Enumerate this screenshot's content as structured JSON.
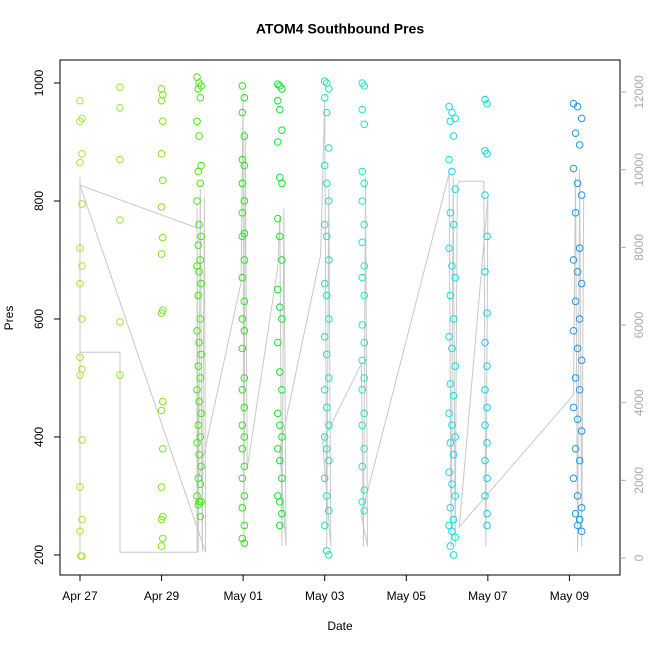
{
  "chart_data": {
    "type": "scatter",
    "title": "ATOM4 Southbound Pres",
    "x_label": "Date",
    "y_label": "Pres",
    "xlim": [
      -0.49,
      13.24
    ],
    "ylim": [
      166,
      1039
    ],
    "y2lim": [
      -438,
      12824
    ],
    "xticks": [
      {
        "value": 0,
        "label": "Apr 27"
      },
      {
        "value": 2,
        "label": "Apr 29"
      },
      {
        "value": 4,
        "label": "May 01"
      },
      {
        "value": 6,
        "label": "May 03"
      },
      {
        "value": 8,
        "label": "May 05"
      },
      {
        "value": 10,
        "label": "May 07"
      },
      {
        "value": 12,
        "label": "May 09"
      }
    ],
    "yticks": [
      200,
      400,
      600,
      800,
      1000
    ],
    "y2ticks": [
      0,
      2000,
      4000,
      6000,
      8000,
      10000,
      12000
    ],
    "series": [
      {
        "axis": "y2",
        "color": "#c8c8c8",
        "x": [
          0,
          0,
          0,
          0.98,
          0.98,
          2.87,
          2.87,
          2.9,
          2.95,
          3.0,
          3.05,
          3.08,
          0,
          2.87,
          2.9,
          3.95,
          4.0,
          4.02,
          4.05,
          4.1,
          4.85,
          4.9,
          4.95,
          5.0,
          5.05,
          4.9,
          5.9,
          6.0,
          6.05,
          6.1,
          6.15,
          5.95,
          6.9,
          6.95,
          7.0,
          7.05,
          6.9,
          9.05,
          9.1,
          9.15,
          9.2,
          9.25,
          9.3,
          9.9,
          9.95,
          10.0,
          9.3,
          12.1,
          12.15,
          12.2,
          12.25,
          12.3,
          12.35
        ],
        "values": [
          150,
          9800,
          5300,
          5300,
          150,
          150,
          9000,
          150,
          9500,
          150,
          9300,
          150,
          9600,
          8500,
          2000,
          7100,
          12000,
          300,
          11000,
          2300,
          7500,
          8800,
          300,
          9000,
          300,
          2800,
          7800,
          11800,
          300,
          9500,
          300,
          3000,
          5000,
          300,
          9800,
          300,
          1100,
          9900,
          300,
          9800,
          300,
          9600,
          9700,
          9700,
          300,
          9300,
          800,
          4200,
          9800,
          150,
          10000,
          300,
          9300
        ]
      },
      {
        "color": "#a8e632",
        "x": [
          0,
          0.05,
          0,
          0.05,
          0,
          0.05,
          0,
          0.05,
          0,
          0.05,
          0,
          0.05,
          0,
          0.05,
          0,
          0.05,
          0,
          0.05,
          0.02
        ],
        "values": [
          970,
          940,
          935,
          880,
          865,
          795,
          720,
          690,
          660,
          600,
          535,
          515,
          505,
          395,
          315,
          260,
          240,
          198,
          198
        ]
      },
      {
        "color": "#98e62b",
        "x": [
          0.98,
          0.98,
          0.98,
          0.98,
          0.98,
          0.98
        ],
        "values": [
          993,
          958,
          870,
          768,
          595,
          505
        ]
      },
      {
        "color": "#7ae621",
        "x": [
          2.0,
          2.03,
          2.0,
          2.03,
          2.0,
          2.03,
          2.0,
          2.03,
          2.0,
          2.03,
          2.0,
          2.03,
          2.0,
          2.03,
          2.0,
          2.03,
          2.0,
          2.03,
          2.0
        ],
        "values": [
          990,
          980,
          970,
          935,
          880,
          835,
          790,
          738,
          710,
          615,
          610,
          460,
          445,
          380,
          315,
          265,
          260,
          228,
          215
        ]
      },
      {
        "color": "#47e612",
        "x": [
          2.87,
          2.92,
          2.97,
          2.9,
          2.95,
          2.87,
          2.92,
          2.97,
          2.9,
          2.95,
          2.87,
          2.92,
          2.97,
          2.9,
          2.95,
          2.87,
          2.92,
          2.97,
          2.9,
          2.95,
          2.87,
          2.92,
          2.97,
          2.9,
          2.95,
          2.87,
          2.92,
          2.97,
          2.9,
          2.95,
          2.87,
          2.92,
          2.97,
          2.9,
          2.95,
          2.87,
          2.92,
          2.97,
          2.9,
          2.95
        ],
        "values": [
          1010,
          1000,
          995,
          990,
          975,
          935,
          910,
          860,
          850,
          830,
          800,
          760,
          740,
          725,
          700,
          690,
          680,
          660,
          640,
          600,
          580,
          560,
          540,
          520,
          500,
          480,
          460,
          440,
          420,
          400,
          390,
          370,
          350,
          330,
          320,
          300,
          290,
          290,
          285,
          265
        ]
      },
      {
        "color": "#2ee617",
        "x": [
          3.98,
          4.03,
          3.98,
          4.03,
          3.98,
          4.03,
          3.98,
          4.03,
          3.98,
          4.03,
          3.98,
          4.03,
          3.98,
          4.03,
          3.98,
          4.03,
          3.98,
          4.03,
          3.98,
          4.03,
          3.98,
          4.03,
          3.98,
          4.03,
          3.98,
          4.03,
          3.98,
          4.03,
          3.98,
          4.03
        ],
        "values": [
          995,
          975,
          950,
          910,
          870,
          860,
          830,
          800,
          780,
          745,
          740,
          700,
          670,
          630,
          600,
          580,
          550,
          500,
          480,
          450,
          420,
          400,
          380,
          350,
          330,
          300,
          280,
          250,
          228,
          220
        ]
      },
      {
        "color": "#14e62a",
        "x": [
          4.85,
          4.9,
          4.95,
          4.85,
          4.9,
          4.95,
          4.85,
          4.9,
          4.95,
          4.85,
          4.9,
          4.95,
          4.85,
          4.9,
          4.95,
          4.85,
          4.9,
          4.95,
          4.85,
          4.9,
          4.95,
          4.85,
          4.9,
          4.95,
          4.85,
          4.9,
          4.95,
          4.9
        ],
        "values": [
          998,
          995,
          990,
          970,
          955,
          920,
          900,
          840,
          830,
          770,
          740,
          700,
          650,
          620,
          600,
          560,
          510,
          480,
          440,
          420,
          400,
          380,
          360,
          330,
          300,
          290,
          270,
          250
        ]
      },
      {
        "color": "#1ee6a8",
        "x": [
          6.0,
          6.05,
          6.1,
          6.0,
          6.05,
          6.1,
          6.0,
          6.05,
          6.1,
          6.0,
          6.05,
          6.1,
          6.0,
          6.05,
          6.1,
          6.0,
          6.05,
          6.1,
          6.0,
          6.05,
          6.1,
          6.0,
          6.05,
          6.1,
          6.0,
          6.05,
          6.1,
          6.0,
          6.05,
          6.1
        ],
        "values": [
          1003,
          1000,
          990,
          975,
          950,
          890,
          860,
          830,
          800,
          760,
          740,
          700,
          660,
          640,
          600,
          570,
          540,
          500,
          480,
          450,
          420,
          400,
          380,
          360,
          330,
          300,
          275,
          250,
          207,
          200
        ]
      },
      {
        "color": "#24e6c2",
        "x": [
          6.92,
          6.97,
          6.92,
          6.97,
          6.92,
          6.97,
          6.92,
          6.97,
          6.92,
          6.97,
          6.92,
          6.97,
          6.92,
          6.97,
          6.92,
          6.97,
          6.92,
          6.97,
          6.92,
          6.97,
          6.92,
          6.97,
          6.92,
          6.97
        ],
        "values": [
          1000,
          995,
          955,
          930,
          850,
          830,
          800,
          760,
          730,
          690,
          670,
          640,
          590,
          560,
          530,
          500,
          480,
          440,
          420,
          380,
          350,
          310,
          290,
          275
        ]
      },
      {
        "color": "#14dce6",
        "x": [
          9.05,
          9.12,
          9.2,
          9.08,
          9.16,
          9.05,
          9.12,
          9.2,
          9.08,
          9.16,
          9.05,
          9.12,
          9.2,
          9.08,
          9.16,
          9.05,
          9.12,
          9.2,
          9.08,
          9.16,
          9.05,
          9.12,
          9.2,
          9.08,
          9.16,
          9.05,
          9.12,
          9.2,
          9.08,
          9.16,
          9.05,
          9.12,
          9.2,
          9.08,
          9.16
        ],
        "values": [
          960,
          950,
          940,
          935,
          910,
          870,
          850,
          820,
          780,
          760,
          720,
          690,
          670,
          640,
          600,
          570,
          550,
          520,
          490,
          470,
          440,
          420,
          400,
          390,
          370,
          340,
          320,
          300,
          280,
          260,
          250,
          240,
          230,
          215,
          200
        ]
      },
      {
        "color": "#17cfe6",
        "x": [
          9.93,
          9.98,
          9.93,
          9.98,
          9.93,
          9.98,
          9.93,
          9.98,
          9.93,
          9.98,
          9.93,
          9.98,
          9.93,
          9.98,
          9.93,
          9.98,
          9.93,
          9.98,
          9.98
        ],
        "values": [
          972,
          965,
          885,
          880,
          810,
          740,
          680,
          610,
          560,
          520,
          480,
          450,
          420,
          390,
          360,
          330,
          300,
          270,
          250
        ]
      },
      {
        "color": "#2196e6",
        "x": [
          12.1,
          12.2,
          12.3,
          12.15,
          12.25,
          12.1,
          12.2,
          12.3,
          12.15,
          12.25,
          12.1,
          12.2,
          12.3,
          12.15,
          12.25,
          12.1,
          12.2,
          12.3,
          12.15,
          12.25,
          12.1,
          12.2,
          12.3,
          12.15,
          12.25,
          12.1,
          12.2,
          12.3,
          12.15,
          12.25,
          12.2,
          12.3
        ],
        "values": [
          965,
          960,
          940,
          915,
          895,
          855,
          830,
          810,
          780,
          720,
          700,
          680,
          660,
          630,
          600,
          580,
          550,
          530,
          500,
          480,
          450,
          430,
          410,
          380,
          360,
          330,
          300,
          280,
          270,
          260,
          250,
          240
        ]
      }
    ]
  }
}
